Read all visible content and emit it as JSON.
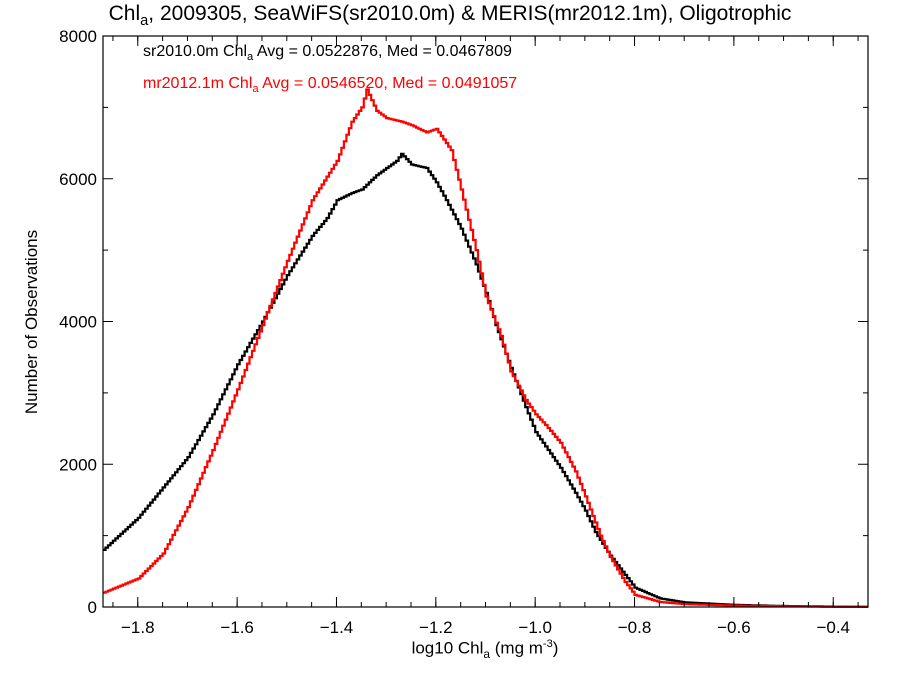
{
  "chart_data": {
    "type": "line",
    "title": {
      "prefix": "Chl",
      "prefix_sub": "a",
      "rest": ", 2009305, SeaWiFS(sr2010.0m) & MERIS(mr2012.1m), Oligotrophic"
    },
    "xlabel": {
      "prefix": "log10 Chl",
      "sub": "a",
      "middle": " (mg m",
      "sup": "-3",
      "suffix": ")"
    },
    "ylabel": "Number of Observations",
    "xlim": [
      -1.87,
      -0.33
    ],
    "ylim": [
      0,
      8000
    ],
    "xticks": [
      -1.8,
      -1.6,
      -1.4,
      -1.2,
      -1.0,
      -0.8,
      -0.6,
      -0.4
    ],
    "xtick_labels": [
      "−1.8",
      "−1.6",
      "−1.4",
      "−1.2",
      "−1.0",
      "−0.8",
      "−0.6",
      "−0.4"
    ],
    "yticks": [
      0,
      2000,
      4000,
      6000,
      8000
    ],
    "ytick_labels": [
      "0",
      "2000",
      "4000",
      "6000",
      "8000"
    ],
    "grid": false,
    "series": [
      {
        "name": "sr2010.0m",
        "color": "#000000",
        "annotation": {
          "name": "sr2010.0m Chl",
          "sub": "a",
          "stats": " Avg = 0.0522876, Med = 0.0467809"
        },
        "x": [
          -1.87,
          -1.8,
          -1.7,
          -1.65,
          -1.6,
          -1.55,
          -1.5,
          -1.45,
          -1.42,
          -1.4,
          -1.37,
          -1.35,
          -1.32,
          -1.3,
          -1.28,
          -1.27,
          -1.25,
          -1.22,
          -1.2,
          -1.18,
          -1.15,
          -1.12,
          -1.1,
          -1.08,
          -1.05,
          -1.02,
          -1.0,
          -0.98,
          -0.95,
          -0.92,
          -0.9,
          -0.88,
          -0.85,
          -0.8,
          -0.75,
          -0.7,
          -0.6,
          -0.5,
          -0.4,
          -0.33
        ],
        "values": [
          800,
          1250,
          2100,
          2700,
          3400,
          4000,
          4650,
          5200,
          5450,
          5700,
          5800,
          5850,
          6050,
          6150,
          6250,
          6350,
          6200,
          6150,
          5950,
          5700,
          5300,
          4800,
          4400,
          3950,
          3350,
          2800,
          2450,
          2250,
          1950,
          1600,
          1350,
          1050,
          720,
          270,
          120,
          65,
          30,
          14,
          6,
          3
        ]
      },
      {
        "name": "mr2012.1m",
        "color": "#ff0000",
        "annotation": {
          "name": "mr2012.1m Chl",
          "sub": "a",
          "stats": " Avg = 0.0546520, Med = 0.0491057"
        },
        "x": [
          -1.87,
          -1.8,
          -1.75,
          -1.7,
          -1.65,
          -1.6,
          -1.55,
          -1.5,
          -1.45,
          -1.4,
          -1.37,
          -1.35,
          -1.34,
          -1.32,
          -1.3,
          -1.27,
          -1.25,
          -1.22,
          -1.2,
          -1.17,
          -1.15,
          -1.12,
          -1.1,
          -1.07,
          -1.05,
          -1.02,
          -1.0,
          -0.98,
          -0.95,
          -0.92,
          -0.9,
          -0.87,
          -0.85,
          -0.82,
          -0.8,
          -0.75,
          -0.7,
          -0.6,
          -0.5,
          -0.4,
          -0.33
        ],
        "values": [
          200,
          400,
          750,
          1400,
          2200,
          3050,
          3950,
          4850,
          5700,
          6250,
          6800,
          7000,
          7250,
          6950,
          6850,
          6800,
          6750,
          6650,
          6700,
          6400,
          5850,
          5000,
          4350,
          3800,
          3300,
          2900,
          2700,
          2550,
          2300,
          1900,
          1550,
          1000,
          700,
          350,
          170,
          70,
          40,
          20,
          10,
          5,
          3
        ]
      }
    ]
  }
}
